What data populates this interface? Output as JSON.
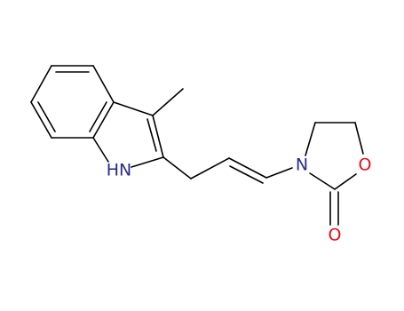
{
  "atoms": [
    {
      "label": "HN"
    },
    {
      "label": "N"
    },
    {
      "label": "O"
    },
    {
      "label": "O"
    }
  ]
}
